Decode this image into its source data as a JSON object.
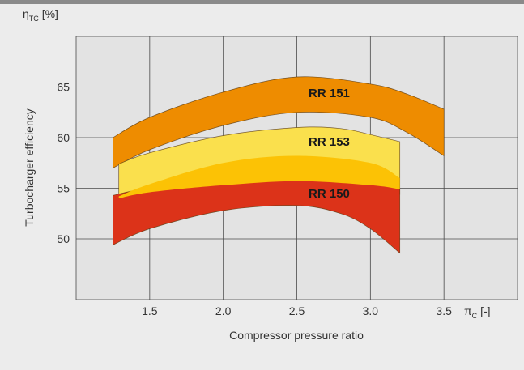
{
  "chart_data": {
    "type": "area",
    "title": "",
    "ylabel": "Turbocharger efficiency",
    "xlabel": "Compressor pressure ratio",
    "y_symbol": {
      "main": "η",
      "sub": "TC",
      "unit": "[%]"
    },
    "x_symbol": {
      "main": "π",
      "sub": "C",
      "unit": "[-]"
    },
    "xlim": [
      1.0,
      4.0
    ],
    "ylim": [
      44,
      70
    ],
    "x_ticks": [
      "1.5",
      "2.0",
      "2.5",
      "3.0",
      "3.5"
    ],
    "y_ticks": [
      "50",
      "55",
      "60",
      "65"
    ],
    "grid": true,
    "series": [
      {
        "name": "RR 151",
        "color": "#ee8c00",
        "x_start": 1.25,
        "x_end": 3.5,
        "upper": [
          [
            1.25,
            60.0
          ],
          [
            1.5,
            62.0
          ],
          [
            2.0,
            64.5
          ],
          [
            2.5,
            66.0
          ],
          [
            3.0,
            65.3
          ],
          [
            3.25,
            64.3
          ],
          [
            3.5,
            62.8
          ]
        ],
        "lower": [
          [
            1.25,
            57.0
          ],
          [
            1.5,
            58.8
          ],
          [
            2.0,
            61.2
          ],
          [
            2.5,
            62.5
          ],
          [
            3.0,
            62.0
          ],
          [
            3.25,
            60.5
          ],
          [
            3.5,
            58.2
          ]
        ]
      },
      {
        "name": "RR 153",
        "color": "#fae04d",
        "x_start": 1.29,
        "x_end": 3.2,
        "upper": [
          [
            1.29,
            57.4
          ],
          [
            1.5,
            58.5
          ],
          [
            2.0,
            60.2
          ],
          [
            2.5,
            61.0
          ],
          [
            2.8,
            60.9
          ],
          [
            3.0,
            60.3
          ],
          [
            3.2,
            59.6
          ]
        ],
        "lower": [
          [
            1.29,
            52.2
          ],
          [
            1.5,
            54.0
          ],
          [
            2.0,
            56.2
          ],
          [
            2.5,
            57.0
          ],
          [
            3.0,
            56.0
          ],
          [
            3.2,
            54.4
          ]
        ]
      },
      {
        "name": "RR 150",
        "color": "#dc3319",
        "x_start": 1.25,
        "x_end": 3.2,
        "upper": [
          [
            1.25,
            54.3
          ],
          [
            1.5,
            55.0
          ],
          [
            2.0,
            55.5
          ],
          [
            2.5,
            55.8
          ],
          [
            3.0,
            55.6
          ],
          [
            3.2,
            54.9
          ]
        ],
        "lower": [
          [
            1.25,
            49.4
          ],
          [
            1.5,
            51.0
          ],
          [
            2.0,
            52.8
          ],
          [
            2.5,
            53.3
          ],
          [
            2.8,
            52.5
          ],
          [
            3.0,
            51.0
          ],
          [
            3.2,
            48.6
          ]
        ]
      }
    ],
    "overlap_band": {
      "color": "#fcc205",
      "upper": [
        [
          1.29,
          54.2
        ],
        [
          1.5,
          55.4
        ],
        [
          2.0,
          57.5
        ],
        [
          2.5,
          58.2
        ],
        [
          3.0,
          57.5
        ],
        [
          3.2,
          56.0
        ]
      ],
      "lower": [
        [
          1.29,
          54.0
        ],
        [
          1.5,
          54.6
        ],
        [
          2.0,
          55.3
        ],
        [
          2.5,
          55.7
        ],
        [
          3.0,
          55.3
        ],
        [
          3.2,
          54.9
        ]
      ]
    },
    "label_positions": {
      "RR 151": [
        2.72,
        64.0
      ],
      "RR 153": [
        2.72,
        59.2
      ],
      "RR 150": [
        2.72,
        54.1
      ]
    }
  }
}
